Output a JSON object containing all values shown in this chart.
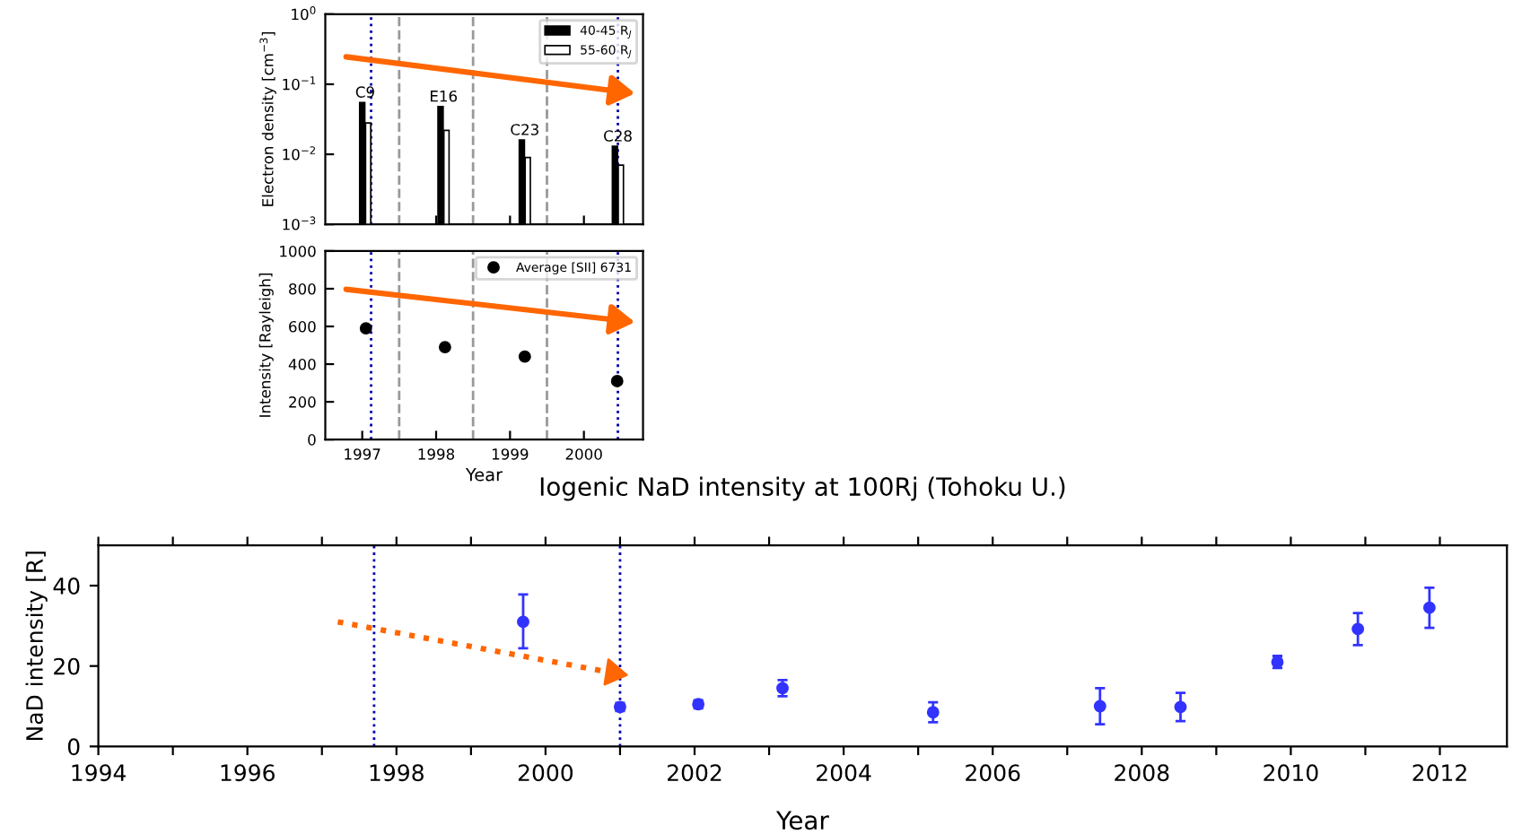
{
  "chart_data": [
    {
      "type": "bar",
      "ylabel": "Electron density [cm$^{−3}$]",
      "log": "y",
      "xlim": [
        1996.5,
        2000.8
      ],
      "ylim": [
        0.001,
        1
      ],
      "yticks": [
        {
          "value": 0.001,
          "label": "10$^{−3}$"
        },
        {
          "value": 0.01,
          "label": "10$^{−2}$"
        },
        {
          "value": 0.1,
          "label": "10$^{−1}$"
        },
        {
          "value": 1,
          "label": "10$^{0}$"
        }
      ],
      "tick_labels": "y",
      "legend": "top right",
      "series": [
        {
          "name": "40-45 R$_{J}$",
          "color": "#000000",
          "x": [
            1997.0,
            1998.06,
            1999.16,
            2000.42
          ],
          "values": [
            0.055,
            0.048,
            0.016,
            0.013
          ]
        },
        {
          "name": "55-60 R$_{J}$",
          "color": "#ffffff",
          "x": [
            1997.08,
            1998.14,
            1999.24,
            2000.5
          ],
          "values": [
            0.028,
            0.022,
            0.009,
            0.007
          ]
        }
      ],
      "annotations": [
        {
          "text": "C9",
          "x": 1997.04,
          "y": 0.055
        },
        {
          "text": "E16",
          "x": 1998.1,
          "y": 0.048
        },
        {
          "text": "C23",
          "x": 1999.2,
          "y": 0.016
        },
        {
          "text": "C28",
          "x": 2000.46,
          "y": 0.013
        }
      ],
      "ref_lines": [
        {
          "axis": "x",
          "value": 1997.5,
          "color": "#999999",
          "line_style": "dashed"
        },
        {
          "axis": "x",
          "value": 1998.5,
          "color": "#999999",
          "line_style": "dashed"
        },
        {
          "axis": "x",
          "value": 1999.5,
          "color": "#999999",
          "line_style": "dashed"
        },
        {
          "axis": "x",
          "value": 1997.12,
          "color": "#0000aa",
          "line_style": "dotted"
        },
        {
          "axis": "x",
          "value": 2000.46,
          "color": "#0000aa",
          "line_style": "dotted"
        }
      ]
    },
    {
      "type": "scatter",
      "xlabel": "Year",
      "ylabel": "Intensity [Rayleigh]",
      "xlim": [
        1996.5,
        2000.8
      ],
      "ylim": [
        0,
        1000
      ],
      "xticks": [
        1997,
        1998,
        1999,
        2000
      ],
      "yticks": [
        0,
        200,
        400,
        600,
        800,
        1000
      ],
      "legend": "top right",
      "marker": "circle",
      "series": [
        {
          "name": "Average [SII] 6731",
          "color": "#000000",
          "x": [
            1997.05,
            1998.12,
            1999.2,
            2000.45
          ],
          "values": [
            590,
            490,
            440,
            310
          ]
        }
      ],
      "ref_lines": [
        {
          "axis": "x",
          "value": 1997.5,
          "color": "#999999",
          "line_style": "dashed"
        },
        {
          "axis": "x",
          "value": 1998.5,
          "color": "#999999",
          "line_style": "dashed"
        },
        {
          "axis": "x",
          "value": 1999.5,
          "color": "#999999",
          "line_style": "dashed"
        },
        {
          "axis": "x",
          "value": 1997.12,
          "color": "#0000aa",
          "line_style": "dotted"
        },
        {
          "axis": "x",
          "value": 2000.46,
          "color": "#0000aa",
          "line_style": "dotted"
        }
      ]
    },
    {
      "type": "scatter",
      "title": "Iogenic NaD intensity at 100Rj (Tohoku U.)",
      "xlabel": "Year",
      "ylabel": "NaD intensity [R]",
      "xlim": [
        1994,
        2012.9
      ],
      "ylim": [
        0,
        50
      ],
      "xticks": [
        1994,
        {
          "value": 1995,
          "label": null
        },
        1996,
        {
          "value": 1997,
          "label": null
        },
        1998,
        {
          "value": 1999,
          "label": null
        },
        2000,
        {
          "value": 2001,
          "label": null
        },
        2002,
        {
          "value": 2003,
          "label": null
        },
        2004,
        {
          "value": 2005,
          "label": null
        },
        2006,
        {
          "value": 2007,
          "label": null
        },
        2008,
        {
          "value": 2009,
          "label": null
        },
        2010,
        {
          "value": 2011,
          "label": null
        },
        2012
      ],
      "yticks": [
        0,
        20,
        40
      ],
      "marker": "circle",
      "series": [
        {
          "color": "#3333ff",
          "x": [
            1999.7,
            2001.0,
            2002.05,
            2003.18,
            2005.2,
            2007.44,
            2008.52,
            2009.82,
            2010.9,
            2011.86
          ],
          "values": [
            31,
            9.8,
            10.5,
            14.5,
            8.5,
            10,
            9.8,
            21,
            29.2,
            34.5
          ],
          "errors": [
            [
              24.4,
              37.8
            ],
            1,
            1,
            2,
            2.5,
            4.5,
            3.5,
            1.5,
            4,
            5
          ]
        }
      ],
      "ref_lines": [
        {
          "axis": "x",
          "value": 1997.7,
          "color": "#0000aa",
          "line_style": "dotted"
        },
        {
          "axis": "x",
          "value": 2001.0,
          "color": "#0000aa",
          "line_style": "dotted"
        }
      ]
    }
  ]
}
